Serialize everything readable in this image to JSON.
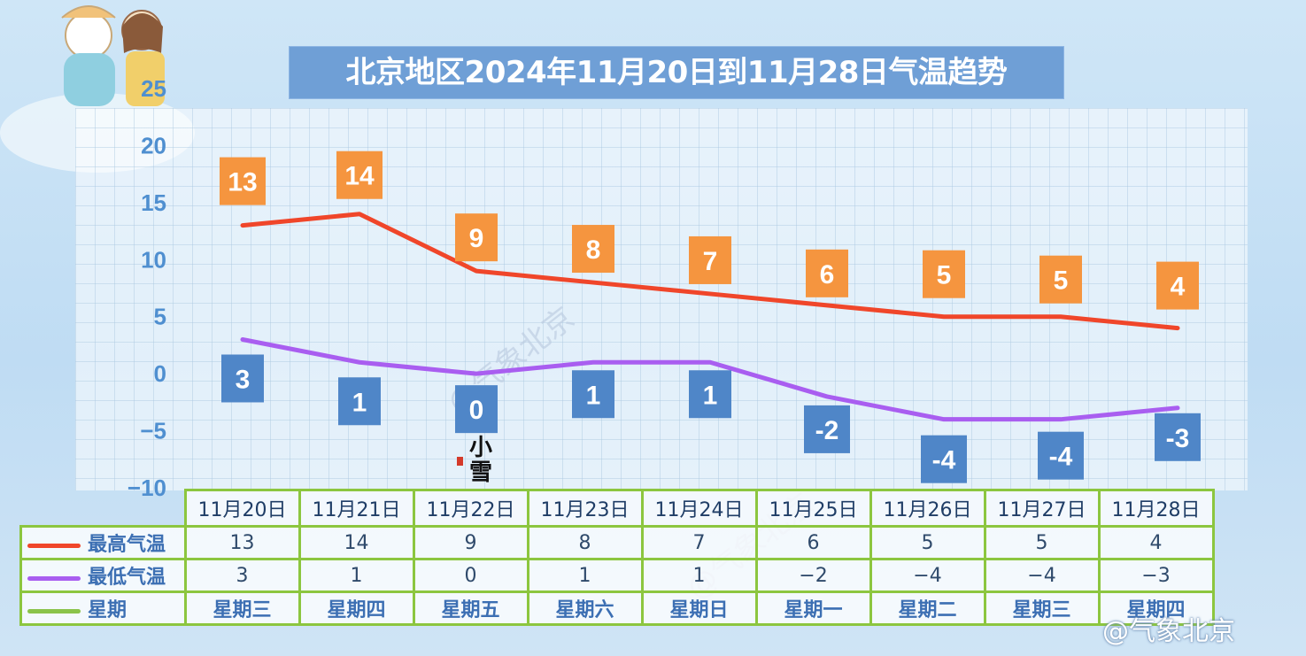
{
  "title": "北京地区2024年11月20日到11月28日气温趋势",
  "weibo_watermark": "@气象北京",
  "diagonal_watermark": "@气象北京",
  "weather_note": "小雪",
  "colors": {
    "high": "#f0462a",
    "low": "#a95ef0",
    "weekday": "#8bc34a",
    "high_label_bg": "#f5953f",
    "low_label_bg": "#4f86c8",
    "axis_text": "#4f8fd0"
  },
  "table": {
    "dates": [
      "11月20日",
      "11月21日",
      "11月22日",
      "11月23日",
      "11月24日",
      "11月25日",
      "11月26日",
      "11月27日",
      "11月28日"
    ],
    "rows": [
      {
        "label": "最高气温",
        "color": "#f0462a",
        "values": [
          "13",
          "14",
          "9",
          "8",
          "7",
          "6",
          "5",
          "5",
          "4"
        ]
      },
      {
        "label": "最低气温",
        "color": "#a95ef0",
        "values": [
          "3",
          "1",
          "0",
          "1",
          "1",
          "−2",
          "−4",
          "−4",
          "−3"
        ]
      },
      {
        "label": "星期",
        "color": "#8bc34a",
        "values": [
          "星期三",
          "星期四",
          "星期五",
          "星期六",
          "星期日",
          "星期一",
          "星期二",
          "星期三",
          "星期四"
        ]
      }
    ]
  },
  "chart_data": {
    "type": "line",
    "title": "北京地区2024年11月20日到11月28日气温趋势",
    "categories": [
      "11月20日",
      "11月21日",
      "11月22日",
      "11月23日",
      "11月24日",
      "11月25日",
      "11月26日",
      "11月27日",
      "11月28日"
    ],
    "series": [
      {
        "name": "最高气温",
        "values": [
          13,
          14,
          9,
          8,
          7,
          6,
          5,
          5,
          4
        ]
      },
      {
        "name": "最低气温",
        "values": [
          3,
          1,
          0,
          1,
          1,
          -2,
          -4,
          -4,
          -3
        ]
      }
    ],
    "ylim": [
      -10,
      25
    ],
    "yticks": [
      "25",
      "20",
      "15",
      "10",
      "5",
      "0",
      "−5",
      "−10"
    ],
    "data_labels": {
      "high": [
        "13",
        "14",
        "9",
        "8",
        "7",
        "6",
        "5",
        "5",
        "4"
      ],
      "low": [
        "3",
        "1",
        "0",
        "1",
        "1",
        "-2",
        "-4",
        "-4",
        "-3"
      ]
    },
    "grid": true,
    "legend": "table-bottom"
  }
}
